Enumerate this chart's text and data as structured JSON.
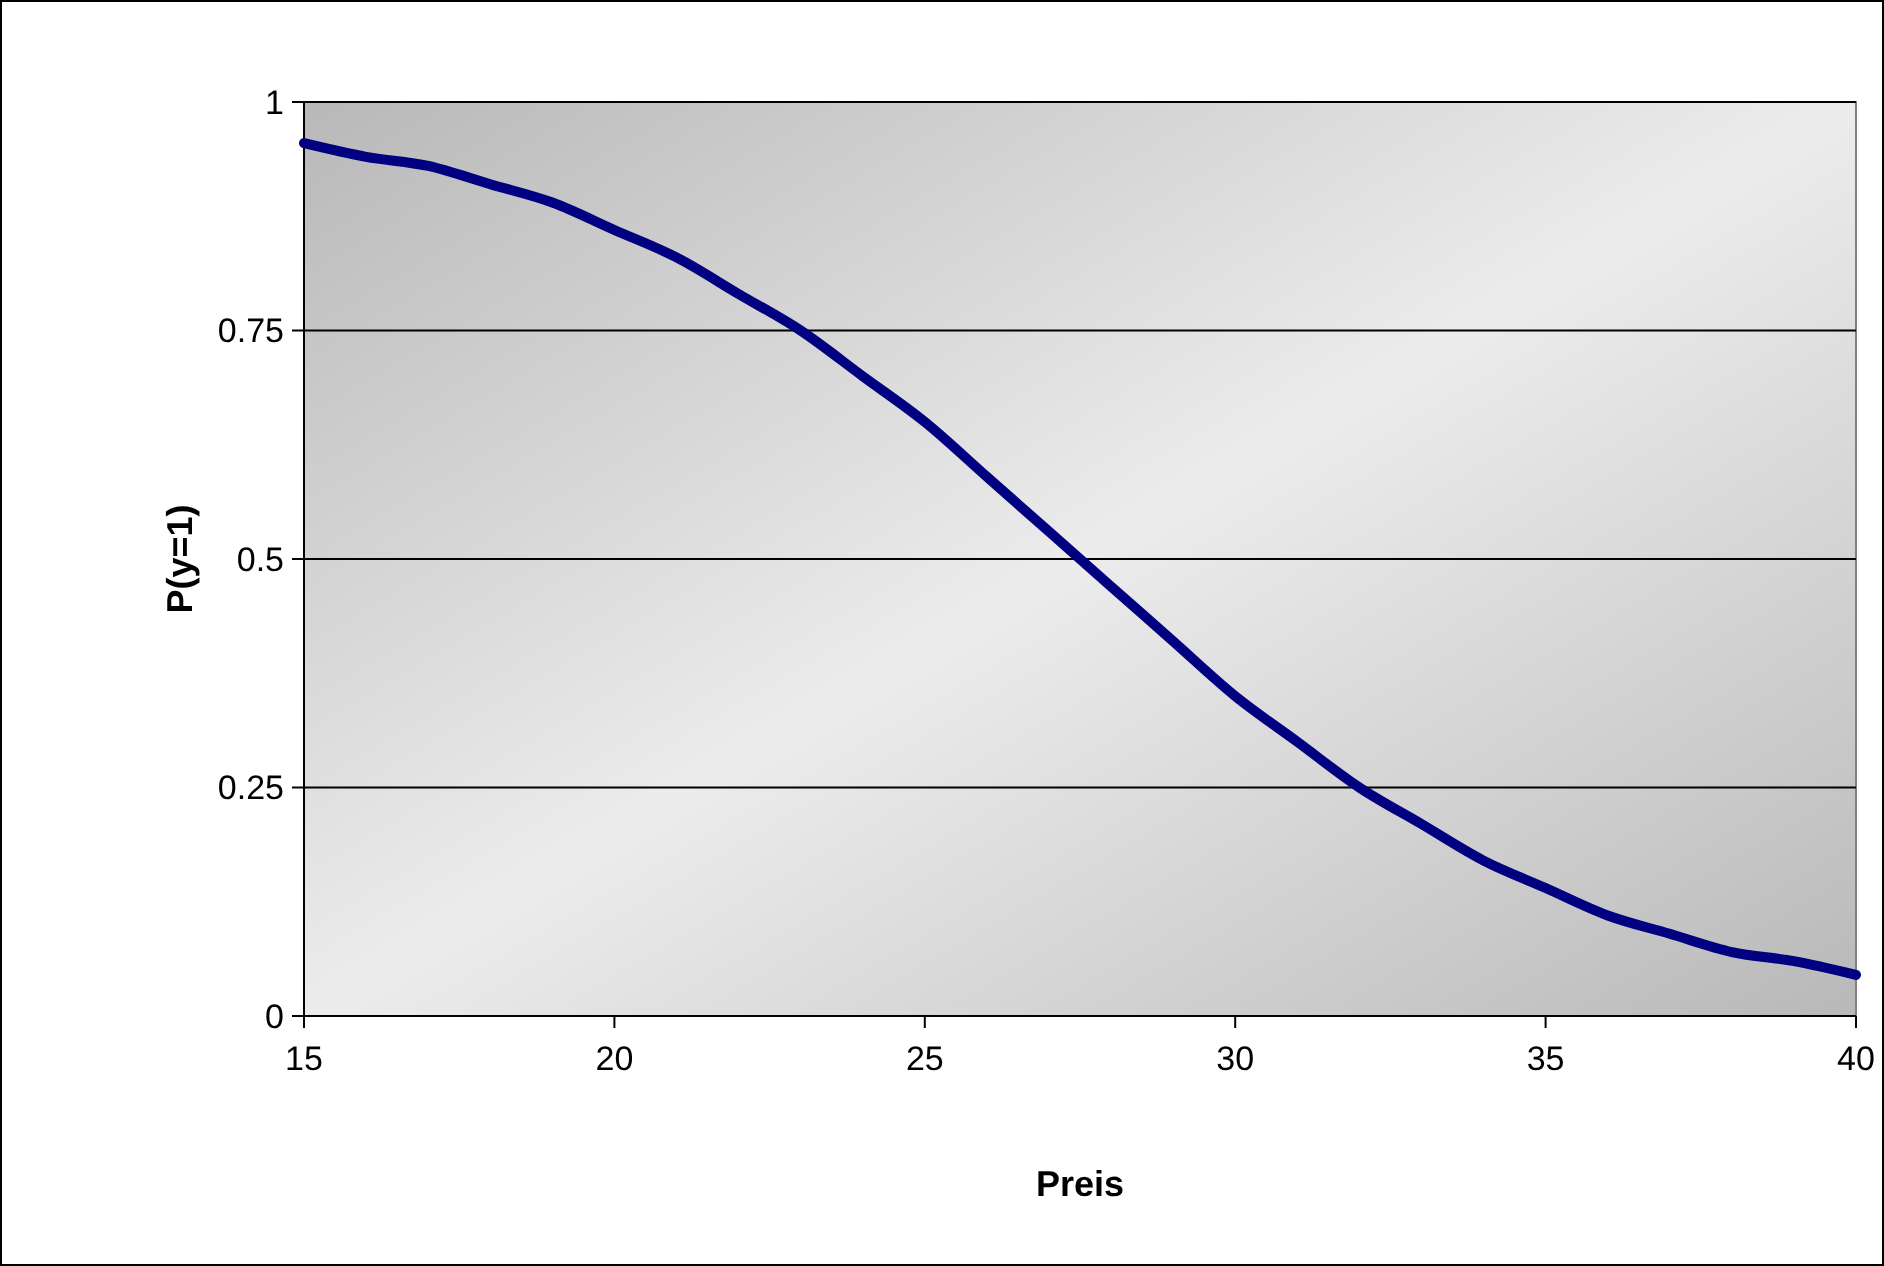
{
  "chart_data": {
    "type": "line",
    "xlabel": "Preis",
    "ylabel": "P(y=1)",
    "x": [
      15,
      16,
      17,
      18,
      19,
      20,
      21,
      22,
      23,
      24,
      25,
      26,
      27,
      28,
      29,
      30,
      31,
      32,
      33,
      34,
      35,
      36,
      37,
      38,
      39,
      40
    ],
    "series": [
      {
        "color": "#000080",
        "values": [
          0.955,
          0.94,
          0.93,
          0.91,
          0.89,
          0.86,
          0.83,
          0.79,
          0.75,
          0.7,
          0.65,
          0.59,
          0.53,
          0.47,
          0.41,
          0.35,
          0.3,
          0.25,
          0.21,
          0.17,
          0.14,
          0.11,
          0.09,
          0.07,
          0.06,
          0.045
        ]
      }
    ],
    "xlim": [
      15,
      40
    ],
    "xticks": [
      15,
      20,
      25,
      30,
      35,
      40
    ],
    "ylim": [
      0,
      1
    ],
    "yticks": [
      0,
      0.25,
      0.5,
      0.75,
      1
    ],
    "grid": "y",
    "marker": "none",
    "line_style": "solid"
  }
}
